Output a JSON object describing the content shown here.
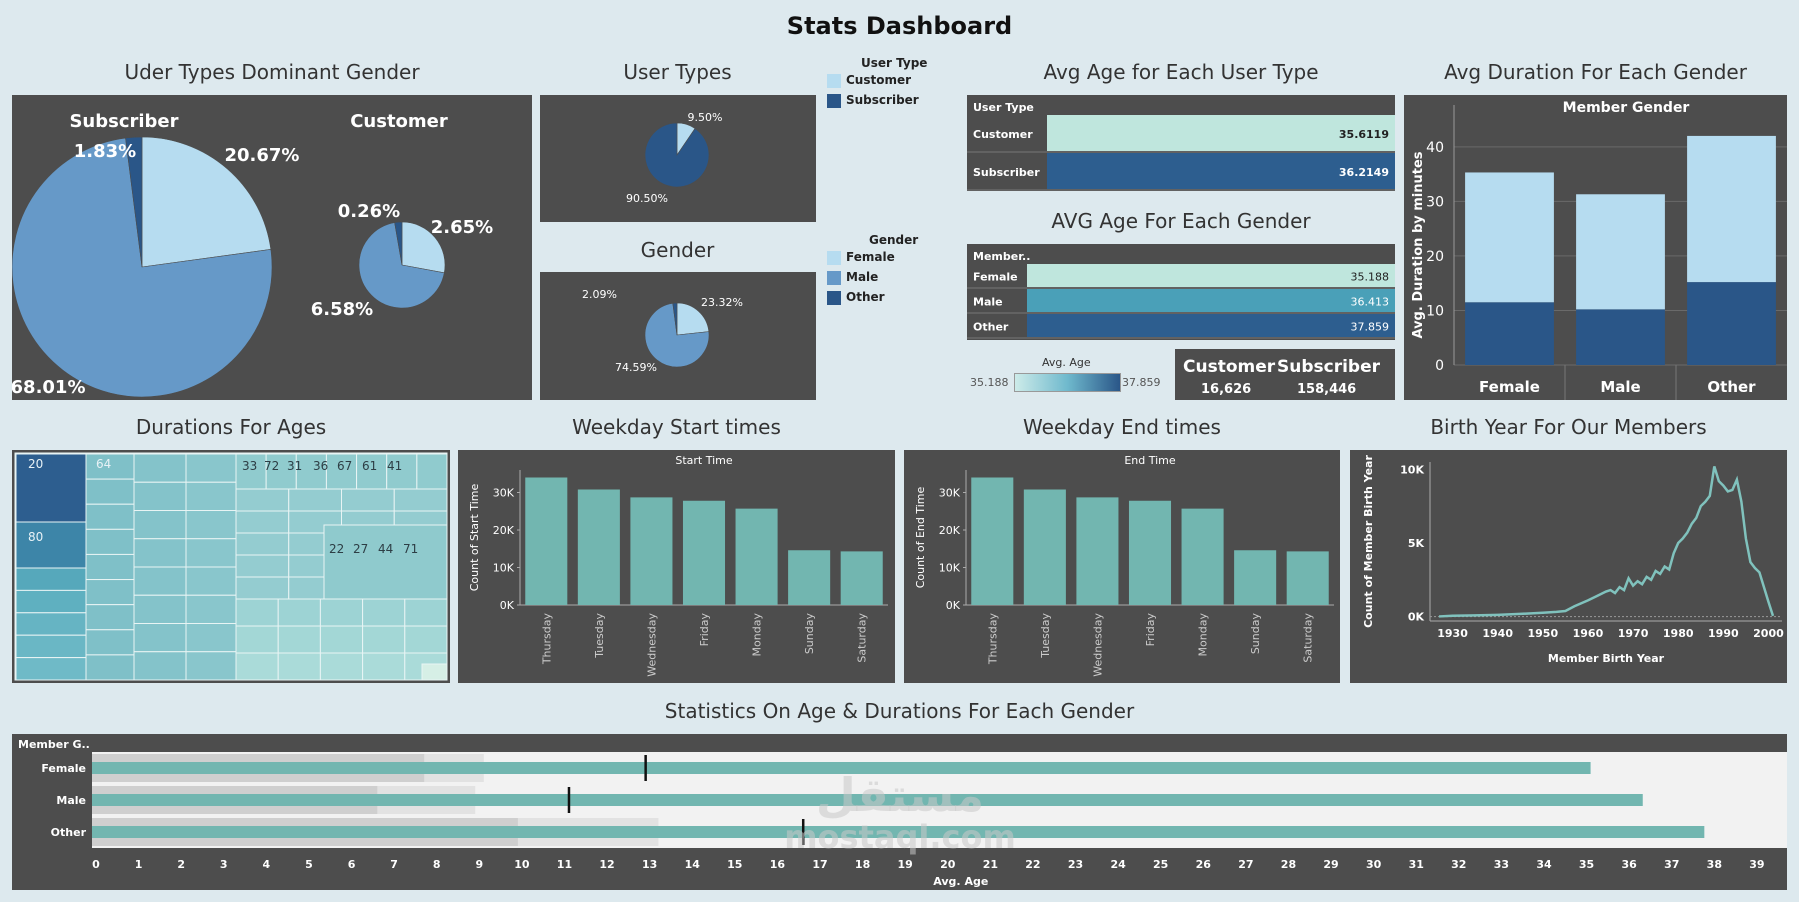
{
  "dashboard_title": "Stats Dashboard",
  "colors": {
    "light": "#b6dcf0",
    "mid": "#6699c8",
    "dark": "#2a5688",
    "teal": "#72b6b0",
    "panel": "#4d4d4d",
    "bg": "#dde9ee"
  },
  "titles": {
    "dominant_gender": "Uder Types Dominant Gender",
    "user_types": "User Types",
    "gender": "Gender",
    "avg_age_user_type": "Avg Age for Each User Type",
    "avg_age_gender": "AVG Age For Each Gender",
    "avg_duration_gender": "Avg Duration For Each Gender",
    "durations_ages": "Durations For Ages",
    "weekday_start": "Weekday Start times",
    "weekday_end": "Weekday End times",
    "birth_year": "Birth Year For Our Members",
    "stats_age_duration": "Statistics On Age & Durations For Each Gender"
  },
  "legends": {
    "user_type": {
      "title": "User Type",
      "items": [
        "Customer",
        "Subscriber"
      ]
    },
    "gender": {
      "title": "Gender",
      "items": [
        "Female",
        "Male",
        "Other"
      ]
    },
    "avg_age": {
      "title": "Avg. Age",
      "min": "35.188",
      "max": "37.859"
    }
  },
  "kpi": {
    "customer_label": "Customer",
    "customer_value": "16,626",
    "subscriber_label": "Subscriber",
    "subscriber_value": "158,446"
  },
  "watermark": {
    "line1": "مستقل",
    "line2": "mostaql.com"
  },
  "chart_data": [
    {
      "id": "dominant_gender",
      "type": "pie",
      "pies": [
        {
          "name": "Subscriber",
          "slices": [
            {
              "label": "20.67%",
              "value": 20.67,
              "color": "light"
            },
            {
              "label": "68.01%",
              "value": 68.01,
              "color": "mid"
            },
            {
              "label": "1.83%",
              "value": 1.83,
              "color": "dark"
            }
          ]
        },
        {
          "name": "Customer",
          "slices": [
            {
              "label": "2.65%",
              "value": 2.65,
              "color": "light"
            },
            {
              "label": "6.58%",
              "value": 6.58,
              "color": "mid"
            },
            {
              "label": "0.26%",
              "value": 0.26,
              "color": "dark"
            }
          ]
        }
      ]
    },
    {
      "id": "user_types",
      "type": "pie",
      "slices": [
        {
          "label": "9.50%",
          "value": 9.5,
          "color": "light"
        },
        {
          "label": "90.50%",
          "value": 90.5,
          "color": "dark"
        }
      ]
    },
    {
      "id": "gender",
      "type": "pie",
      "slices": [
        {
          "label": "23.32%",
          "value": 23.32,
          "color": "light"
        },
        {
          "label": "74.59%",
          "value": 74.59,
          "color": "mid"
        },
        {
          "label": "2.09%",
          "value": 2.09,
          "color": "dark"
        }
      ]
    },
    {
      "id": "avg_age_user_type",
      "type": "bar",
      "header": "User Type",
      "categories": [
        "Customer",
        "Subscriber"
      ],
      "values": [
        35.6119,
        36.2149
      ],
      "labels": [
        "35.6119",
        "36.2149"
      ]
    },
    {
      "id": "avg_age_gender",
      "type": "bar",
      "header": "Member..",
      "categories": [
        "Female",
        "Male",
        "Other"
      ],
      "values": [
        35.188,
        36.413,
        37.859
      ],
      "labels": [
        "35.188",
        "36.413",
        "37.859"
      ]
    },
    {
      "id": "avg_duration_gender",
      "type": "bar",
      "title": "Member Gender",
      "ylabel": "Avg. Duration by minutes",
      "categories": [
        "Female",
        "Male",
        "Other"
      ],
      "series": [
        {
          "name": "Subscriber",
          "values": [
            11.5,
            10.2,
            15.2
          ]
        },
        {
          "name": "Customer",
          "values": [
            23.8,
            21.1,
            26.8
          ]
        }
      ],
      "ylim": [
        0,
        44
      ],
      "yticks": [
        "0",
        "10",
        "20",
        "30",
        "40"
      ]
    },
    {
      "id": "durations_ages",
      "type": "heatmap",
      "labels": [
        "20",
        "64",
        "80",
        "33",
        "72",
        "31",
        "36",
        "67",
        "61",
        "41",
        "22",
        "27",
        "44",
        "71"
      ]
    },
    {
      "id": "weekday_start",
      "type": "bar",
      "title": "Start Time",
      "ylabel": "Count of Start Time",
      "categories": [
        "Thursday",
        "Tuesday",
        "Wednesday",
        "Friday",
        "Monday",
        "Sunday",
        "Saturday"
      ],
      "values": [
        34000,
        30800,
        28700,
        27800,
        25700,
        14600,
        14300
      ],
      "ylim": [
        0,
        36000
      ],
      "yticks": [
        "0K",
        "10K",
        "20K",
        "30K"
      ]
    },
    {
      "id": "weekday_end",
      "type": "bar",
      "title": "End Time",
      "ylabel": "Count of End Time",
      "categories": [
        "Thursday",
        "Tuesday",
        "Wednesday",
        "Friday",
        "Monday",
        "Sunday",
        "Saturday"
      ],
      "values": [
        34000,
        30800,
        28700,
        27800,
        25700,
        14600,
        14300
      ],
      "ylim": [
        0,
        36000
      ],
      "yticks": [
        "0K",
        "10K",
        "20K",
        "30K"
      ]
    },
    {
      "id": "birth_year",
      "type": "line",
      "xlabel": "Member Birth Year",
      "ylabel": "Count of Member Birth Year",
      "x": [
        1927,
        1930,
        1935,
        1940,
        1945,
        1950,
        1953,
        1955,
        1957,
        1960,
        1962,
        1964,
        1965,
        1966,
        1967,
        1968,
        1969,
        1970,
        1971,
        1972,
        1973,
        1974,
        1975,
        1976,
        1977,
        1978,
        1979,
        1980,
        1981,
        1982,
        1983,
        1984,
        1985,
        1986,
        1987,
        1988,
        1989,
        1990,
        1991,
        1992,
        1993,
        1994,
        1995,
        1996,
        1997,
        1998,
        1999,
        2000,
        2001
      ],
      "y": [
        10,
        60,
        80,
        120,
        180,
        260,
        320,
        380,
        700,
        1100,
        1400,
        1700,
        1800,
        1600,
        2000,
        1800,
        2600,
        2100,
        2400,
        2200,
        2700,
        2500,
        3100,
        2900,
        3400,
        3200,
        4300,
        5000,
        5300,
        5700,
        6300,
        6700,
        7500,
        7800,
        8200,
        10200,
        9200,
        8900,
        8500,
        8600,
        9300,
        7800,
        5300,
        3700,
        3300,
        3000,
        2000,
        1000,
        50
      ],
      "xlim": [
        1925,
        2003
      ],
      "ylim": [
        -300,
        10500
      ],
      "xticks": [
        "1930",
        "1940",
        "1950",
        "1960",
        "1970",
        "1980",
        "1990",
        "2000"
      ],
      "yticks": [
        "0K",
        "5K",
        "10K"
      ]
    },
    {
      "id": "stats_age_duration",
      "type": "bar",
      "header": "Member G..",
      "xlabel": "Avg. Age",
      "categories": [
        "Female",
        "Male",
        "Other"
      ],
      "values": [
        35.188,
        36.413,
        37.859
      ],
      "reference_markers": [
        13.0,
        11.2,
        16.7
      ],
      "xlim": [
        0,
        39.8
      ],
      "xticks": [
        "0",
        "1",
        "2",
        "3",
        "4",
        "5",
        "6",
        "7",
        "8",
        "9",
        "10",
        "11",
        "12",
        "13",
        "14",
        "15",
        "16",
        "17",
        "18",
        "19",
        "20",
        "21",
        "22",
        "23",
        "24",
        "25",
        "26",
        "27",
        "28",
        "29",
        "30",
        "31",
        "32",
        "33",
        "34",
        "35",
        "36",
        "37",
        "38",
        "39"
      ]
    }
  ]
}
